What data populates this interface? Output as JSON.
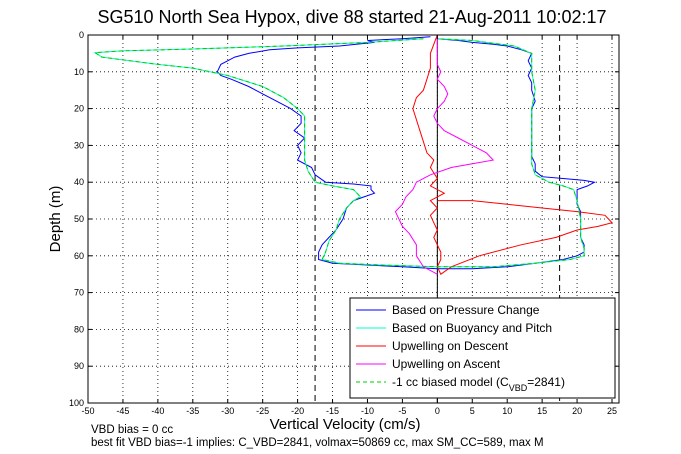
{
  "chart_data": {
    "type": "line",
    "title": "SG510 North Sea Hypox, dive 88 started 21-Aug-2011 10:02:17",
    "xlabel": "Vertical Velocity (cm/s)",
    "ylabel": "Depth (m)",
    "xlim": [
      -50,
      26
    ],
    "ylim": [
      0,
      100
    ],
    "y_reversed": true,
    "grid": true,
    "x_ticks": [
      -50,
      -45,
      -40,
      -35,
      -30,
      -25,
      -20,
      -15,
      -10,
      -5,
      0,
      5,
      10,
      15,
      20,
      25
    ],
    "y_ticks": [
      0,
      10,
      20,
      30,
      40,
      50,
      60,
      70,
      80,
      90,
      100
    ],
    "legend_position": "bottom-right",
    "reference_lines": {
      "vertical_solid_x": 0,
      "vertical_dashed_x": [
        -17.5,
        17.5
      ]
    },
    "series": [
      {
        "name": "Based on Pressure Change",
        "color": "#0000ff",
        "style": "solid",
        "points": [
          [
            -1,
            0.5
          ],
          [
            -5,
            1
          ],
          [
            -10,
            1.5
          ],
          [
            -9,
            2
          ],
          [
            -14,
            3
          ],
          [
            -20,
            3.5
          ],
          [
            -24,
            4
          ],
          [
            -27,
            5
          ],
          [
            -29,
            6
          ],
          [
            -30,
            7
          ],
          [
            -31,
            8
          ],
          [
            -31.5,
            10
          ],
          [
            -31,
            11
          ],
          [
            -29.5,
            12
          ],
          [
            -27,
            14
          ],
          [
            -25,
            16
          ],
          [
            -23,
            18
          ],
          [
            -21,
            20
          ],
          [
            -19.5,
            22
          ],
          [
            -19.5,
            24
          ],
          [
            -20.5,
            26
          ],
          [
            -19,
            28
          ],
          [
            -20,
            30
          ],
          [
            -19.5,
            32
          ],
          [
            -20,
            34
          ],
          [
            -18,
            36
          ],
          [
            -17.5,
            38
          ],
          [
            -16,
            40
          ],
          [
            -12,
            40.5
          ],
          [
            -9.5,
            41
          ],
          [
            -9.5,
            42
          ],
          [
            -9,
            43
          ],
          [
            -10.5,
            44
          ],
          [
            -12,
            45
          ],
          [
            -13,
            47
          ],
          [
            -13.5,
            50
          ],
          [
            -14.5,
            53
          ],
          [
            -15.5,
            55
          ],
          [
            -16.5,
            57
          ],
          [
            -17,
            59
          ],
          [
            -17,
            61
          ],
          [
            -15,
            62
          ],
          [
            -10,
            62.5
          ],
          [
            -5,
            63
          ],
          [
            0,
            63.5
          ],
          [
            5,
            63.5
          ],
          [
            10,
            63
          ],
          [
            14,
            62
          ],
          [
            18,
            61
          ],
          [
            20,
            60
          ],
          [
            21,
            59
          ],
          [
            21,
            57
          ],
          [
            20.5,
            55
          ],
          [
            20.5,
            52
          ],
          [
            20.5,
            50
          ],
          [
            20.5,
            48
          ],
          [
            20,
            46
          ],
          [
            20,
            43
          ],
          [
            20,
            42
          ],
          [
            21.5,
            41
          ],
          [
            22.5,
            40
          ],
          [
            21,
            39.5
          ],
          [
            18,
            39
          ],
          [
            15,
            38.5
          ],
          [
            14,
            37
          ],
          [
            14,
            35
          ],
          [
            13.5,
            33
          ],
          [
            13.5,
            30
          ],
          [
            13.5,
            28
          ],
          [
            13.5,
            25
          ],
          [
            13.5,
            22
          ],
          [
            13.5,
            20
          ],
          [
            14,
            18
          ],
          [
            13.5,
            15
          ],
          [
            13.5,
            13
          ],
          [
            13,
            11
          ],
          [
            13.5,
            9
          ],
          [
            13,
            7
          ],
          [
            13.5,
            5
          ],
          [
            12,
            4
          ],
          [
            10,
            3
          ],
          [
            8,
            2.5
          ],
          [
            5,
            2
          ],
          [
            3,
            1.5
          ],
          [
            0,
            1
          ]
        ]
      },
      {
        "name": "Based on Buoyancy and Pitch",
        "color": "#00ffcc",
        "style": "solid",
        "points": [
          [
            -2,
            1
          ],
          [
            -10,
            2
          ],
          [
            -22,
            3
          ],
          [
            -35,
            3.8
          ],
          [
            -45,
            4.3
          ],
          [
            -49,
            4.8
          ],
          [
            -48,
            6
          ],
          [
            -44,
            7
          ],
          [
            -40,
            8
          ],
          [
            -35,
            9
          ],
          [
            -30,
            11
          ],
          [
            -25,
            14
          ],
          [
            -22,
            17
          ],
          [
            -20,
            20
          ],
          [
            -19,
            22
          ],
          [
            -19,
            25
          ],
          [
            -19,
            28
          ],
          [
            -19,
            31
          ],
          [
            -19,
            34
          ],
          [
            -18.5,
            37
          ],
          [
            -17.5,
            40
          ],
          [
            -15,
            41
          ],
          [
            -12,
            42
          ],
          [
            -11,
            44
          ],
          [
            -12,
            45
          ],
          [
            -13,
            47
          ],
          [
            -14,
            50
          ],
          [
            -14.5,
            53
          ],
          [
            -15.5,
            56
          ],
          [
            -16,
            59
          ],
          [
            -16.5,
            61
          ],
          [
            -14,
            62
          ],
          [
            -8,
            62.5
          ],
          [
            0,
            63
          ],
          [
            8,
            63
          ],
          [
            14,
            62
          ],
          [
            19,
            61
          ],
          [
            21,
            60
          ],
          [
            21,
            58
          ],
          [
            20.5,
            55
          ],
          [
            20.5,
            50
          ],
          [
            20,
            45
          ],
          [
            19.5,
            42
          ],
          [
            18,
            41
          ],
          [
            16,
            40
          ],
          [
            14,
            38
          ],
          [
            13.5,
            35
          ],
          [
            13.5,
            30
          ],
          [
            13.5,
            25
          ],
          [
            13.5,
            20
          ],
          [
            14,
            15
          ],
          [
            13.5,
            10
          ],
          [
            13.5,
            5
          ],
          [
            11,
            3
          ],
          [
            5,
            1.5
          ],
          [
            0,
            1
          ]
        ]
      },
      {
        "name": "Upwelling on Descent",
        "color": "#ff0000",
        "style": "solid",
        "points": [
          [
            0,
            0
          ],
          [
            -1,
            5
          ],
          [
            -1,
            9
          ],
          [
            -1.5,
            12
          ],
          [
            -2,
            15
          ],
          [
            -3,
            17
          ],
          [
            -3.5,
            20
          ],
          [
            -3,
            23
          ],
          [
            -2.5,
            26
          ],
          [
            -2,
            29
          ],
          [
            -1.5,
            32
          ],
          [
            -0.5,
            34
          ],
          [
            -1,
            36
          ],
          [
            0,
            39
          ],
          [
            -1,
            41
          ],
          [
            1,
            43
          ],
          [
            -1,
            45
          ],
          [
            0,
            47
          ],
          [
            -1,
            49
          ],
          [
            -0.5,
            51
          ],
          [
            0,
            53
          ],
          [
            -0.5,
            55
          ],
          [
            0,
            57
          ],
          [
            0.5,
            59
          ],
          [
            0.5,
            61
          ],
          [
            0,
            63
          ],
          [
            0.5,
            65
          ],
          [
            2,
            63
          ],
          [
            6,
            60
          ],
          [
            12,
            57
          ],
          [
            17,
            55
          ],
          [
            20,
            53
          ],
          [
            23,
            52
          ],
          [
            25,
            51
          ],
          [
            24.5,
            50
          ],
          [
            24,
            49
          ],
          [
            20,
            48
          ],
          [
            15,
            47
          ],
          [
            10,
            46
          ],
          [
            5,
            45
          ],
          [
            0,
            45
          ]
        ]
      },
      {
        "name": "Upwelling on Ascent",
        "color": "#ff00ff",
        "style": "solid",
        "points": [
          [
            0,
            65
          ],
          [
            -2,
            63
          ],
          [
            -3,
            60
          ],
          [
            -3,
            57
          ],
          [
            -4,
            54
          ],
          [
            -5,
            52
          ],
          [
            -5.5,
            50
          ],
          [
            -6,
            48
          ],
          [
            -5,
            46
          ],
          [
            -4.5,
            44
          ],
          [
            -3.5,
            42
          ],
          [
            -3,
            40
          ],
          [
            -1,
            38
          ],
          [
            2,
            36
          ],
          [
            5,
            35
          ],
          [
            8,
            34
          ],
          [
            7,
            32
          ],
          [
            5,
            30
          ],
          [
            3,
            28
          ],
          [
            1,
            26
          ],
          [
            0,
            24
          ],
          [
            -0.5,
            22
          ],
          [
            0,
            20
          ],
          [
            1,
            18
          ],
          [
            1.5,
            16
          ],
          [
            1,
            14
          ],
          [
            0,
            12
          ],
          [
            0.5,
            10
          ],
          [
            0,
            8
          ],
          [
            0,
            6
          ],
          [
            0,
            4
          ],
          [
            0,
            2
          ],
          [
            0,
            0
          ]
        ]
      },
      {
        "name": "-1 cc biased model (C_VBD=2841)",
        "legend_label": {
          "prefix": "-1 cc biased model (C",
          "sub": "VBD",
          "suffix": "=2841)"
        },
        "color": "#00cc00",
        "style": "dashed",
        "points": [
          [
            -2,
            1
          ],
          [
            -10,
            2
          ],
          [
            -22,
            3
          ],
          [
            -35,
            3.8
          ],
          [
            -45,
            4.3
          ],
          [
            -49,
            4.8
          ],
          [
            -48,
            6
          ],
          [
            -44,
            7
          ],
          [
            -40,
            8
          ],
          [
            -35,
            9
          ],
          [
            -30,
            11
          ],
          [
            -25,
            14
          ],
          [
            -22,
            17
          ],
          [
            -20,
            20
          ],
          [
            -19,
            22
          ],
          [
            -19,
            25
          ],
          [
            -19,
            28
          ],
          [
            -19,
            31
          ],
          [
            -19,
            34
          ],
          [
            -18.5,
            37
          ],
          [
            -17.5,
            40
          ],
          [
            -15,
            41
          ],
          [
            -12,
            42
          ],
          [
            -11,
            44
          ],
          [
            -12,
            45
          ],
          [
            -13,
            47
          ],
          [
            -14,
            50
          ],
          [
            -14.5,
            53
          ],
          [
            -15.5,
            56
          ],
          [
            -16,
            59
          ],
          [
            -16.5,
            61
          ],
          [
            -14,
            62
          ],
          [
            -8,
            62.5
          ],
          [
            0,
            63
          ],
          [
            8,
            63
          ],
          [
            14,
            62
          ],
          [
            19,
            61
          ],
          [
            21,
            60
          ],
          [
            21,
            58
          ],
          [
            20.5,
            55
          ],
          [
            20.5,
            50
          ],
          [
            20,
            45
          ],
          [
            19.5,
            42
          ],
          [
            18,
            41
          ],
          [
            16,
            40
          ],
          [
            14,
            38
          ],
          [
            13.5,
            35
          ],
          [
            13.5,
            30
          ],
          [
            13.5,
            25
          ],
          [
            13.5,
            20
          ],
          [
            14,
            15
          ],
          [
            13.5,
            10
          ],
          [
            13.5,
            5
          ],
          [
            11,
            3
          ],
          [
            5,
            1.5
          ],
          [
            0,
            1
          ]
        ]
      }
    ],
    "footer_lines": [
      "VBD bias = 0 cc",
      "best fit VBD bias=-1 implies: C_VBD=2841, volmax=50869 cc, max SM_CC=589, max M"
    ]
  }
}
